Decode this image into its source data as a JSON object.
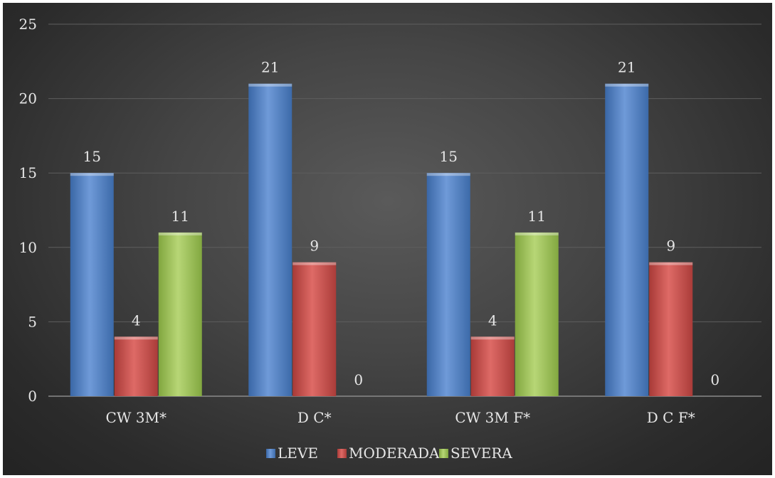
{
  "chart_data": {
    "type": "bar",
    "categories": [
      "CW 3M*",
      "D C*",
      "CW 3M F*",
      "D C F*"
    ],
    "series": [
      {
        "name": "LEVE",
        "values": [
          15,
          21,
          15,
          21
        ],
        "color": "#4f81bd"
      },
      {
        "name": "MODERADA",
        "values": [
          4,
          9,
          4,
          9
        ],
        "color": "#c0504d"
      },
      {
        "name": "SEVERA",
        "values": [
          11,
          0,
          11,
          0
        ],
        "color": "#9bbb59"
      }
    ],
    "ylim": [
      0,
      25
    ],
    "yticks": [
      0,
      5,
      10,
      15,
      20,
      25
    ],
    "grid": true,
    "legend": "bottom",
    "data_labels": true
  }
}
